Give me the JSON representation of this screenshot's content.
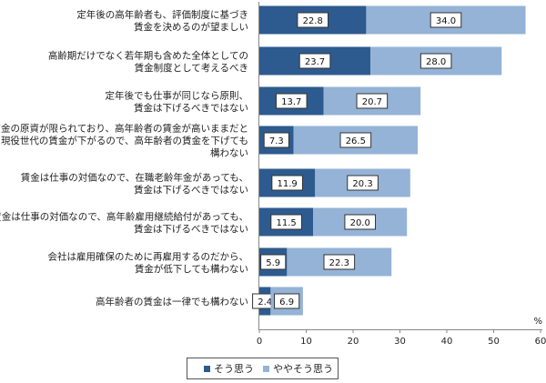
{
  "chart_data": {
    "type": "bar",
    "orientation": "horizontal",
    "stacked": true,
    "categories": [
      [
        "定年後の高年齢者も、評価制度に基づき",
        "賃金を決めるのが望ましい"
      ],
      [
        "高齢期だけでなく若年期も含めた全体としての",
        "賃金制度として考えるべき"
      ],
      [
        "定年後でも仕事が同じなら原則、",
        "賃金は下げるべきではない"
      ],
      [
        "賃金の原資が限られており、高年齢者の賃金が高いままだと",
        "現役世代の賃金が下がるので、高年齢者の賃金を下げても",
        "構わない"
      ],
      [
        "賃金は仕事の対価なので、在職老齢年金があっても、",
        "賃金は下げるべきではない"
      ],
      [
        "賃金は仕事の対価なので、高年齢雇用継続給付があっても、",
        "賃金は下げるべきではない"
      ],
      [
        "会社は雇用確保のために再雇用するのだから、",
        "賃金が低下しても構わない"
      ],
      [
        "高年齢者の賃金は一律でも構わない"
      ]
    ],
    "series": [
      {
        "name": "そう思う",
        "color": "#2e5b8f",
        "values": [
          22.8,
          23.7,
          13.7,
          7.3,
          11.9,
          11.5,
          5.9,
          2.4
        ]
      },
      {
        "name": "ややそう思う",
        "color": "#95b3d7",
        "values": [
          34.0,
          28.0,
          20.7,
          26.5,
          20.3,
          20.0,
          22.3,
          6.9
        ]
      }
    ],
    "xlim": [
      0,
      60
    ],
    "xticks": [
      0,
      10,
      20,
      30,
      40,
      50,
      60
    ],
    "unit": "%",
    "legend_position": "bottom"
  }
}
